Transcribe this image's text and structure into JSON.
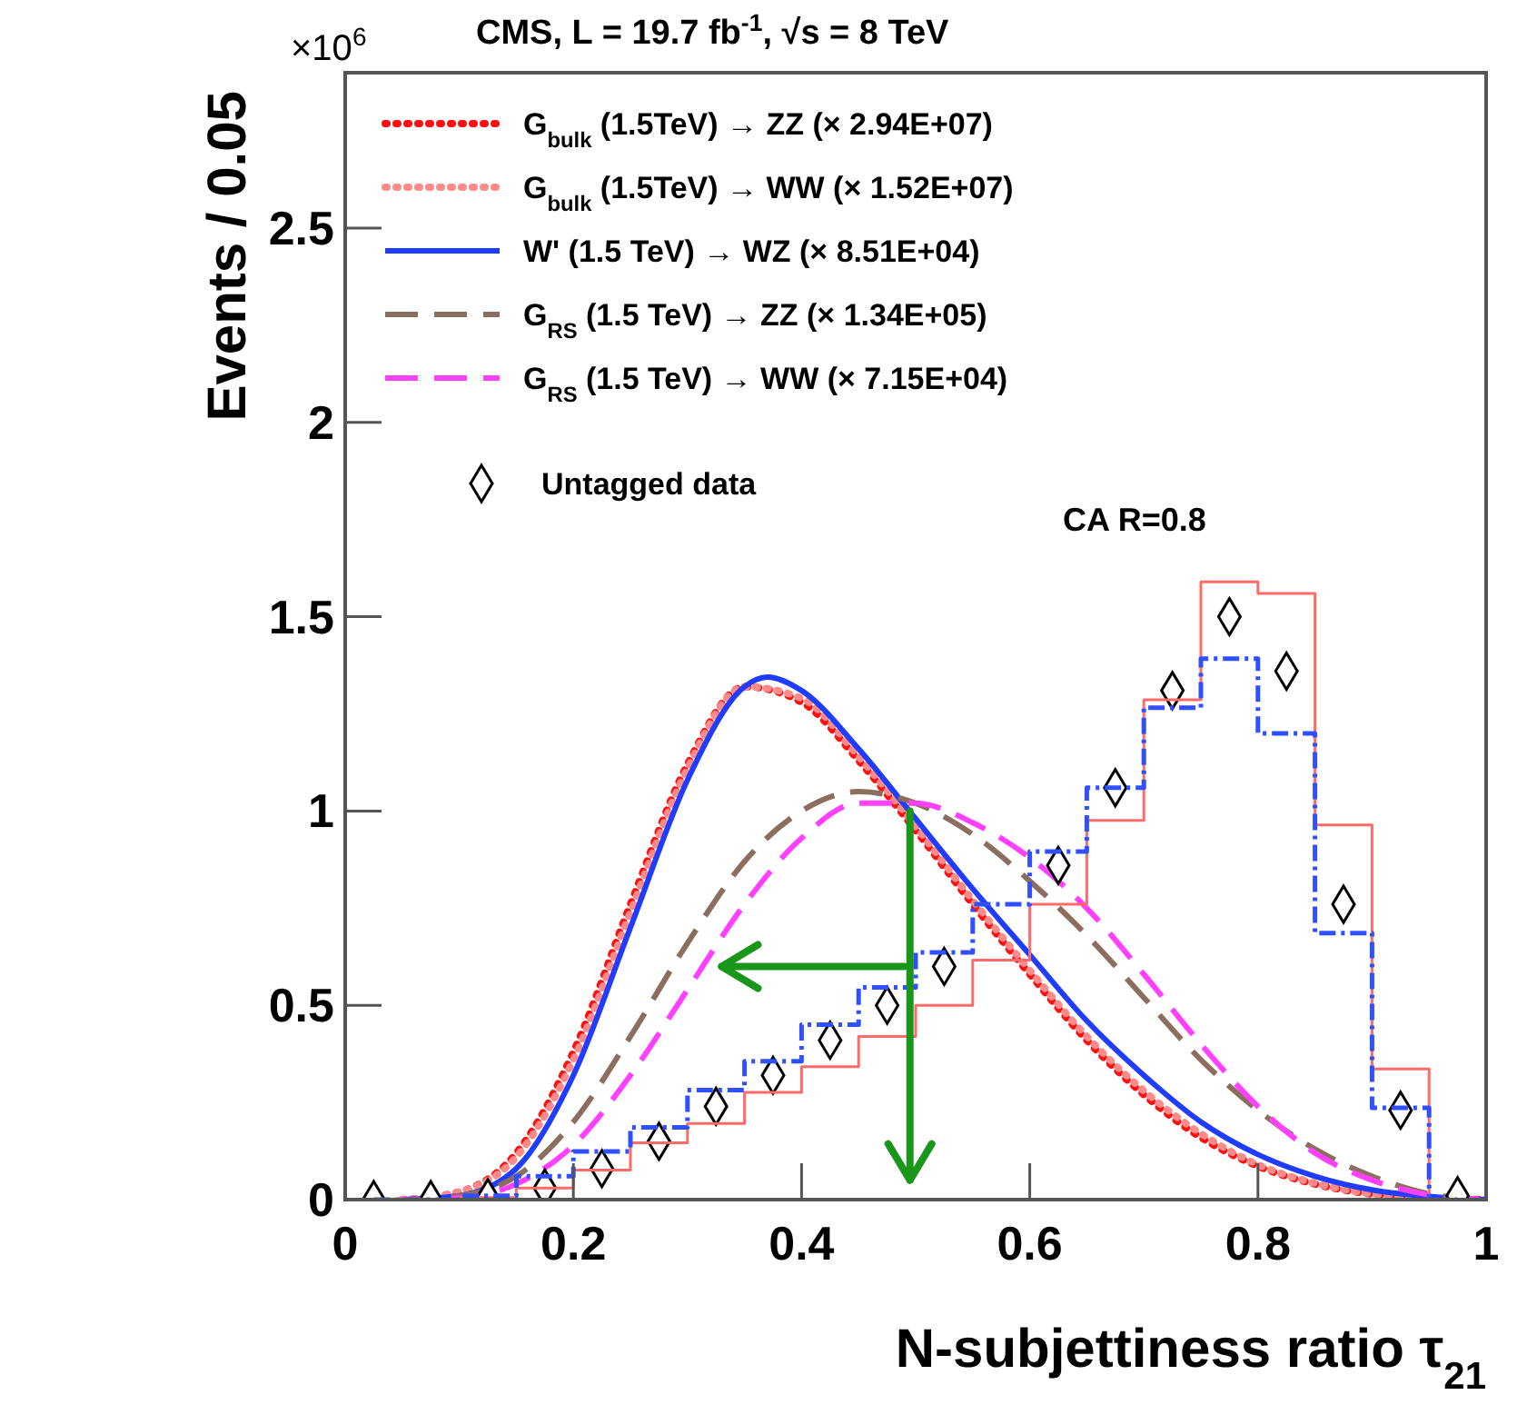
{
  "chart_data": {
    "type": "line",
    "title": "CMS, L = 19.7 fb$^{-1}$, √s = 8 TeV",
    "xlabel": "N-subjettiness ratio τ$_{21}$",
    "ylabel": "Events / 0.05",
    "annotations": [
      "×10$^{6}$",
      "CA R=0.8"
    ],
    "xlim": [
      0,
      1
    ],
    "xticks": [
      0,
      0.2,
      0.4,
      0.6,
      0.8,
      1
    ],
    "ylim": [
      0,
      2.9
    ],
    "yticks": [
      0,
      0.5,
      1,
      1.5,
      2,
      2.5
    ],
    "grid": false,
    "legend": "top",
    "series": [
      {
        "name": "G$_{bulk}$ (1.5TeV) → ZZ (× 2.94E+07)",
        "color": "#ff1010",
        "line_style": "dotted",
        "x": [
          0.05,
          0.1,
          0.15,
          0.2,
          0.25,
          0.3,
          0.35,
          0.4,
          0.45,
          0.5,
          0.55,
          0.6,
          0.65,
          0.7,
          0.75,
          0.8,
          0.85,
          0.9,
          0.95,
          1
        ],
        "values": [
          0,
          0.02,
          0.12,
          0.38,
          0.76,
          1.12,
          1.32,
          1.28,
          1.13,
          0.95,
          0.76,
          0.58,
          0.41,
          0.27,
          0.16,
          0.086,
          0.04,
          0.014,
          0.004,
          0
        ]
      },
      {
        "name": "G$_{bulk}$ (1.5TeV) → WW (× 1.52E+07)",
        "color": "#ff8a8a",
        "line_style": "dotted",
        "x": [
          0.05,
          0.1,
          0.15,
          0.2,
          0.25,
          0.3,
          0.35,
          0.4,
          0.45,
          0.5,
          0.55,
          0.6,
          0.65,
          0.7,
          0.75,
          0.8,
          0.85,
          0.9,
          0.95,
          1
        ],
        "values": [
          0,
          0.02,
          0.11,
          0.36,
          0.74,
          1.11,
          1.32,
          1.29,
          1.14,
          0.96,
          0.77,
          0.59,
          0.42,
          0.28,
          0.17,
          0.09,
          0.042,
          0.015,
          0.004,
          0
        ]
      },
      {
        "name": "W' (1.5 TeV) → WZ (× 8.51E+04)",
        "color": "#1f3cff",
        "line_style": "solid",
        "x": [
          0.05,
          0.1,
          0.15,
          0.2,
          0.25,
          0.3,
          0.35,
          0.37,
          0.4,
          0.45,
          0.5,
          0.55,
          0.6,
          0.65,
          0.7,
          0.75,
          0.8,
          0.85,
          0.9,
          0.95,
          1
        ],
        "values": [
          0,
          0.01,
          0.08,
          0.32,
          0.7,
          1.08,
          1.32,
          1.345,
          1.31,
          1.16,
          0.98,
          0.8,
          0.63,
          0.46,
          0.32,
          0.2,
          0.116,
          0.06,
          0.025,
          0.008,
          0
        ]
      },
      {
        "name": "G$_{RS}$ (1.5 TeV) → ZZ (× 1.34E+05)",
        "color": "#8c6e5e",
        "line_style": "dashed",
        "x": [
          0.05,
          0.1,
          0.15,
          0.2,
          0.25,
          0.3,
          0.35,
          0.4,
          0.45,
          0.5,
          0.55,
          0.6,
          0.65,
          0.7,
          0.75,
          0.8,
          0.85,
          0.9,
          0.95,
          1
        ],
        "values": [
          0,
          0.01,
          0.06,
          0.2,
          0.42,
          0.66,
          0.87,
          1.0,
          1.05,
          1.02,
          0.94,
          0.82,
          0.68,
          0.52,
          0.36,
          0.23,
          0.13,
          0.06,
          0.015,
          0
        ]
      },
      {
        "name": "G$_{RS}$ (1.5 TeV) → WW (× 7.15E+04)",
        "color": "#ff40ff",
        "line_style": "dashed",
        "x": [
          0.05,
          0.1,
          0.15,
          0.2,
          0.25,
          0.3,
          0.35,
          0.4,
          0.45,
          0.5,
          0.55,
          0.6,
          0.65,
          0.7,
          0.75,
          0.8,
          0.85,
          0.9,
          0.95,
          1
        ],
        "values": [
          0,
          0.005,
          0.04,
          0.14,
          0.32,
          0.54,
          0.76,
          0.93,
          1.02,
          1.02,
          0.97,
          0.88,
          0.75,
          0.58,
          0.4,
          0.24,
          0.12,
          0.05,
          0.012,
          0
        ]
      },
      {
        "name": "Untagged data",
        "type": "scatter",
        "color": "#000000",
        "marker": "diamond",
        "x": [
          0.025,
          0.075,
          0.125,
          0.175,
          0.225,
          0.275,
          0.325,
          0.375,
          0.425,
          0.475,
          0.525,
          0.575,
          0.625,
          0.675,
          0.725,
          0.775,
          0.825,
          0.875,
          0.925,
          0.975
        ],
        "values": [
          0,
          0,
          0.005,
          0.03,
          0.08,
          0.15,
          0.24,
          0.32,
          0.41,
          0.5,
          0.6,
          null,
          0.86,
          1.06,
          1.31,
          1.5,
          1.36,
          0.76,
          0.23,
          0.01
        ]
      },
      {
        "type": "step",
        "color": "#ff6a6a",
        "line_style": "solid",
        "x": [
          0.025,
          0.075,
          0.125,
          0.175,
          0.225,
          0.275,
          0.325,
          0.375,
          0.425,
          0.475,
          0.525,
          0.575,
          0.625,
          0.675,
          0.725,
          0.775,
          0.825,
          0.875,
          0.925,
          0.975
        ],
        "values": [
          0,
          0,
          0.005,
          0.03,
          0.076,
          0.146,
          0.196,
          0.276,
          0.342,
          0.42,
          0.5,
          0.616,
          0.76,
          0.976,
          1.286,
          1.59,
          1.56,
          0.964,
          0.336,
          0
        ]
      },
      {
        "type": "step",
        "color": "#3050ff",
        "line_style": "dashed",
        "x": [
          0.025,
          0.075,
          0.125,
          0.175,
          0.225,
          0.275,
          0.325,
          0.375,
          0.425,
          0.475,
          0.525,
          0.575,
          0.625,
          0.675,
          0.725,
          0.775,
          0.825,
          0.875,
          0.925,
          0.975
        ],
        "values": [
          0,
          0,
          0.01,
          0.06,
          0.124,
          0.186,
          0.282,
          0.356,
          0.45,
          0.546,
          0.636,
          0.76,
          0.896,
          1.06,
          1.266,
          1.392,
          1.2,
          0.686,
          0.236,
          0
        ]
      }
    ]
  }
}
